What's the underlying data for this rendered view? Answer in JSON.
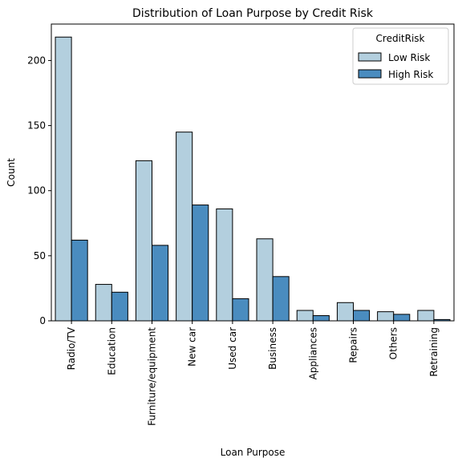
{
  "chart_data": {
    "type": "bar",
    "title": "Distribution of Loan Purpose by Credit Risk",
    "xlabel": "Loan Purpose",
    "ylabel": "Count",
    "categories": [
      "Radio/TV",
      "Education",
      "Furniture/equipment",
      "New car",
      "Used car",
      "Business",
      "Appliances",
      "Repairs",
      "Others",
      "Retraining"
    ],
    "series": [
      {
        "name": "Low Risk",
        "color": "#b3cfde",
        "values": [
          218,
          28,
          123,
          145,
          86,
          63,
          8,
          14,
          7,
          8
        ]
      },
      {
        "name": "High Risk",
        "color": "#4a8cbf",
        "values": [
          62,
          22,
          58,
          89,
          17,
          34,
          4,
          8,
          5,
          1
        ]
      }
    ],
    "ylim": [
      0,
      228
    ],
    "yticks": [
      0,
      50,
      100,
      150,
      200
    ],
    "grid": false,
    "legend": {
      "title": "CreditRisk",
      "placement": "top-right"
    }
  }
}
